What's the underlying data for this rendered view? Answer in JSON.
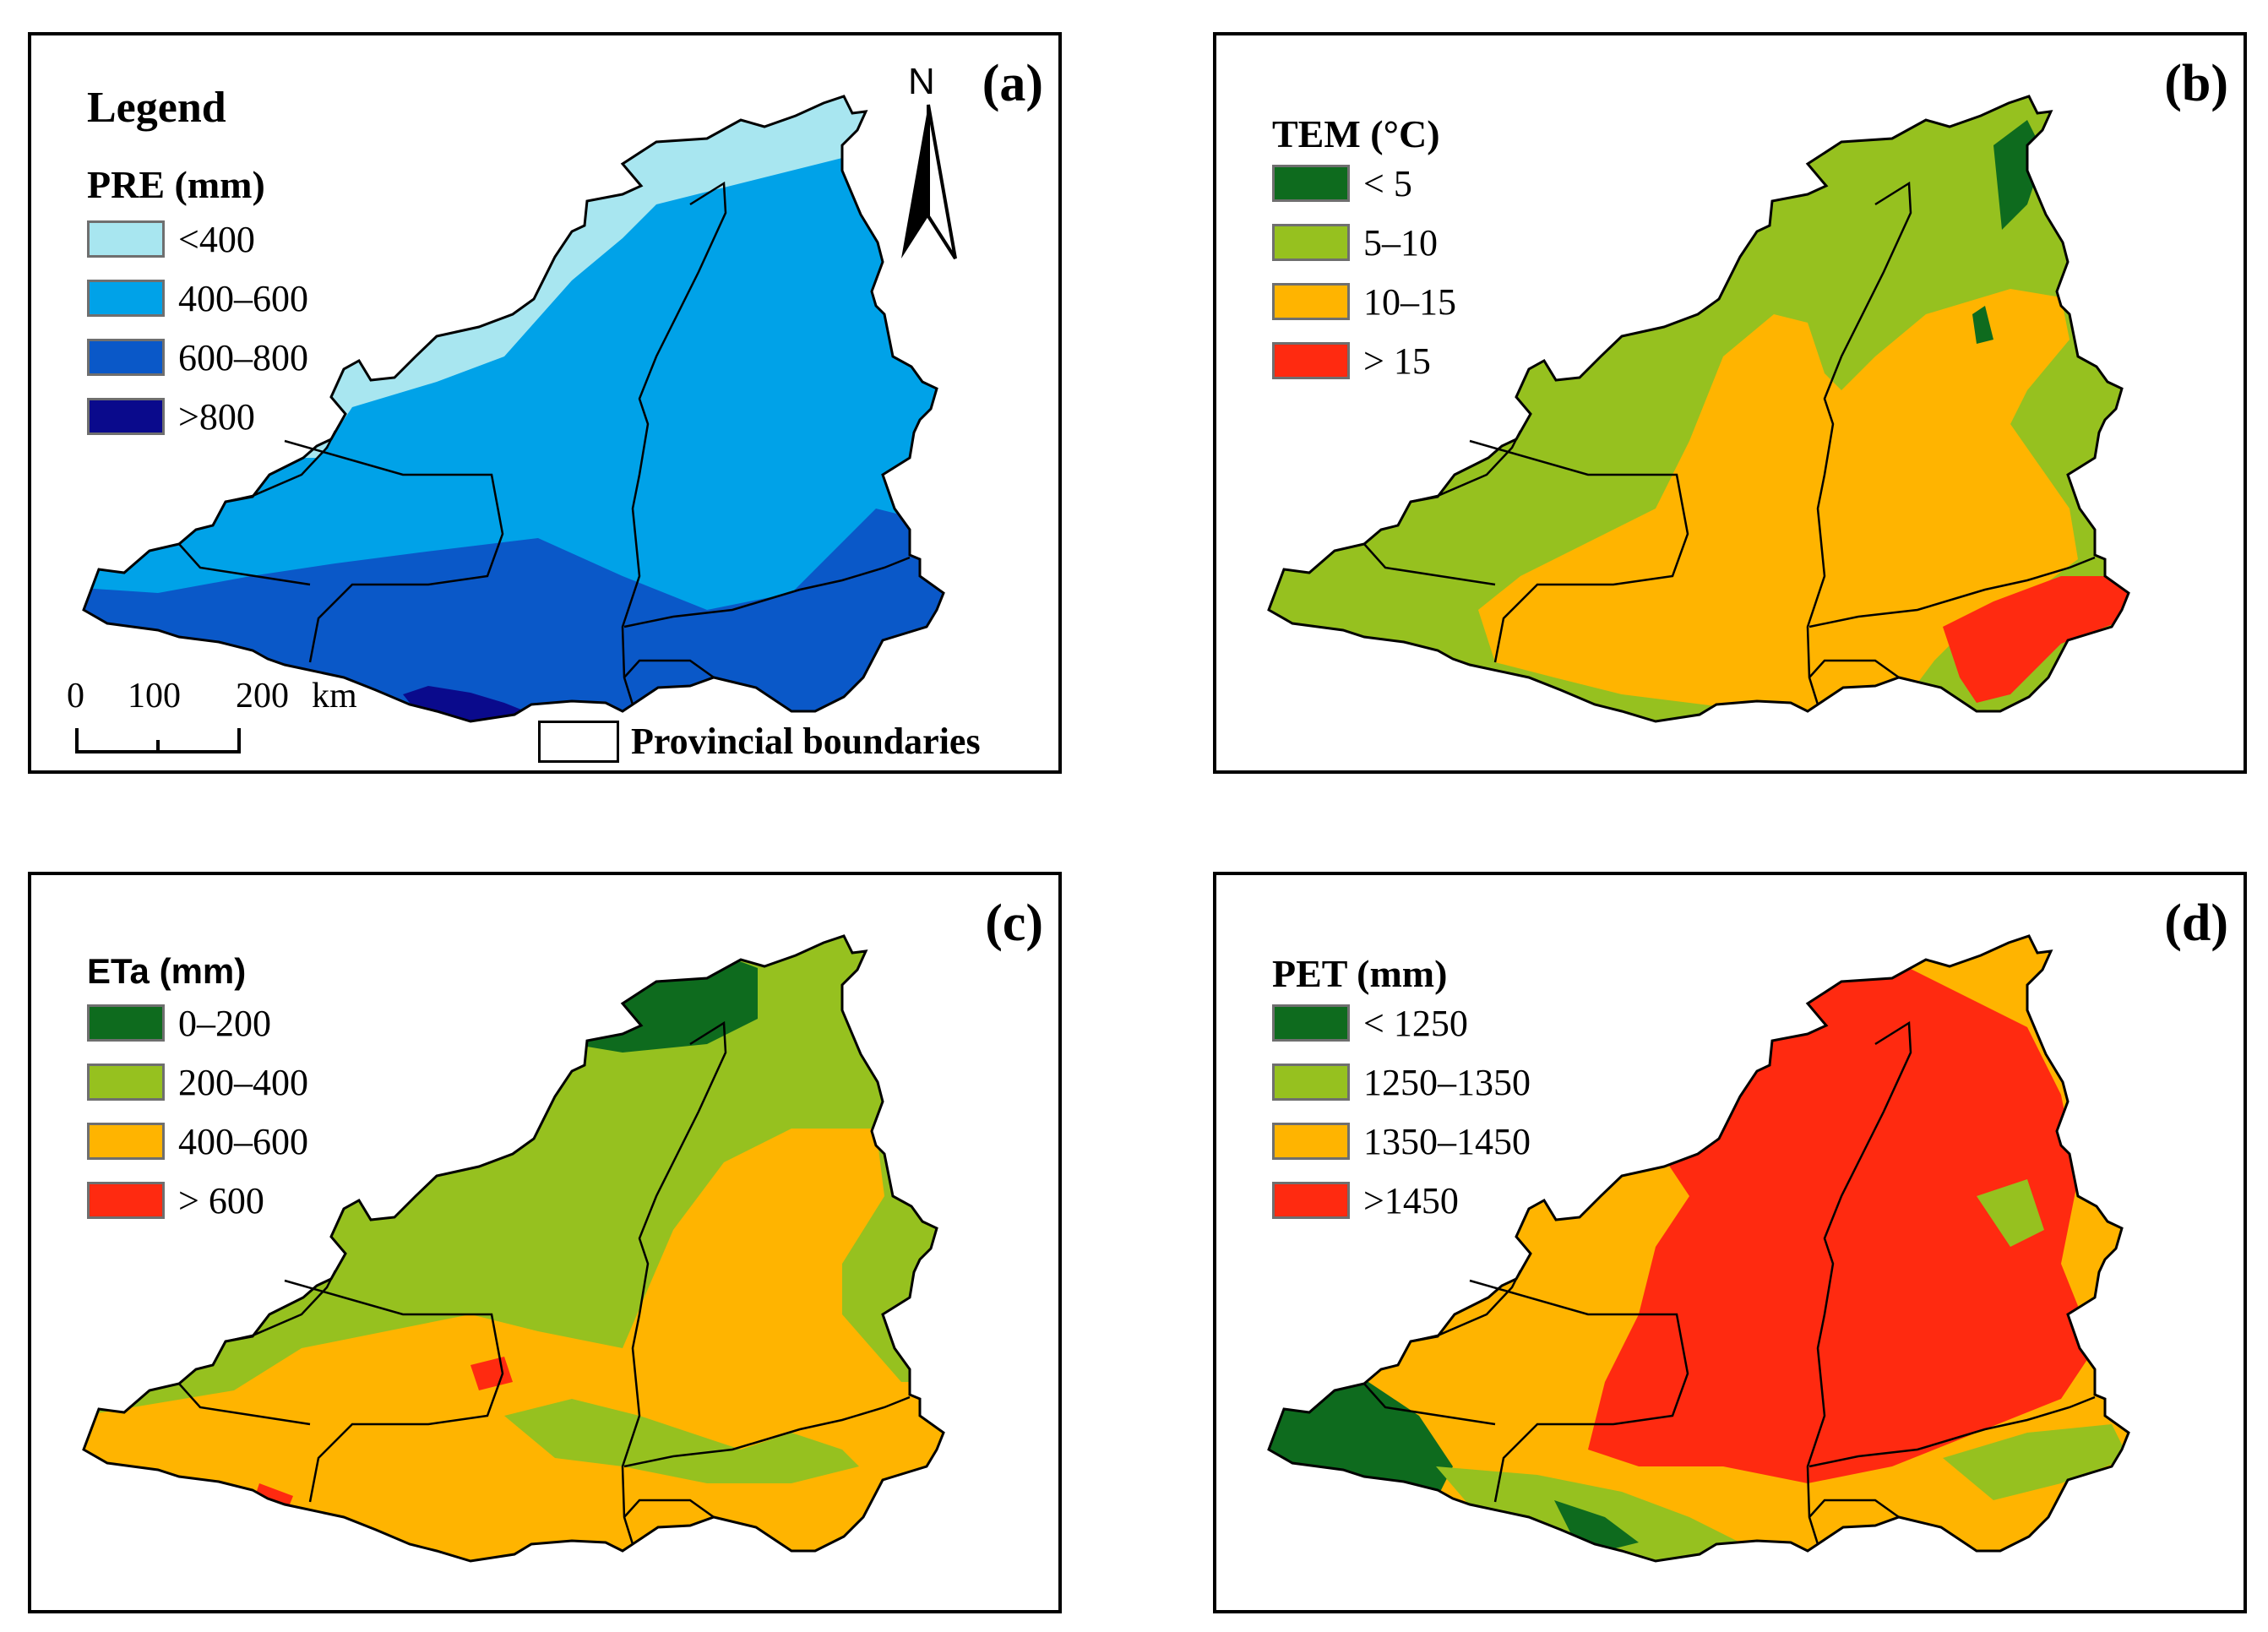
{
  "figure": {
    "panels": [
      {
        "label": "(a)",
        "legend_title": "Legend",
        "variable": "PRE (mm)",
        "classes": [
          {
            "label": "<400",
            "color": "#a8e6f0"
          },
          {
            "label": "400–600",
            "color": "#00a2e8"
          },
          {
            "label": "600–800",
            "color": "#0a58c8"
          },
          {
            "label": ">800",
            "color": "#0a0a8c"
          }
        ],
        "north_label": "N",
        "scale": {
          "labels": [
            "0",
            "100",
            "200",
            "km"
          ]
        },
        "boundary_label": "Provincial boundaries"
      },
      {
        "label": "(b)",
        "variable": "TEM (°C)",
        "classes": [
          {
            "label": "< 5",
            "color": "#0e6b1e"
          },
          {
            "label": "5–10",
            "color": "#96c11f"
          },
          {
            "label": "10–15",
            "color": "#ffb400"
          },
          {
            "label": "> 15",
            "color": "#ff2a10"
          }
        ]
      },
      {
        "label": "(c)",
        "variable": "ETa (mm)",
        "classes": [
          {
            "label": "0–200",
            "color": "#0e6b1e"
          },
          {
            "label": "200–400",
            "color": "#96c11f"
          },
          {
            "label": "400–600",
            "color": "#ffb400"
          },
          {
            "label": "> 600",
            "color": "#ff2a10"
          }
        ]
      },
      {
        "label": "(d)",
        "variable": "PET (mm)",
        "classes": [
          {
            "label": "< 1250",
            "color": "#0e6b1e"
          },
          {
            "label": "1250–1350",
            "color": "#96c11f"
          },
          {
            "label": "1350–1450",
            "color": "#ffb400"
          },
          {
            "label": ">1450",
            "color": "#ff2a10"
          }
        ]
      }
    ]
  }
}
